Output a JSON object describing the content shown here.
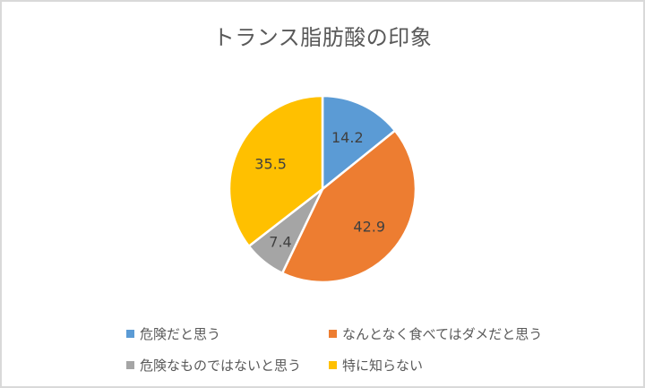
{
  "chart_data": {
    "type": "pie",
    "title": "トランス脂肪酸の印象",
    "categories": [
      "危険だと思う",
      "なんとなく食べてはダメだと思う",
      "危険なものではないと思う",
      "特に知らない"
    ],
    "values": [
      14.2,
      42.9,
      7.4,
      35.5
    ],
    "colors": [
      "#5b9bd5",
      "#ed7d31",
      "#a5a5a5",
      "#ffc000"
    ],
    "data_labels": [
      "14.2",
      "42.9",
      "7.4",
      "35.5"
    ],
    "legend_position": "bottom",
    "start_angle": "12 o'clock, clockwise"
  },
  "legend": [
    {
      "label": "危険だと思う",
      "color": "#5b9bd5"
    },
    {
      "label": "なんとなく食べてはダメだと思う",
      "color": "#ed7d31"
    },
    {
      "label": "危険なものではないと思う",
      "color": "#a5a5a5"
    },
    {
      "label": "特に知らない",
      "color": "#ffc000"
    }
  ]
}
